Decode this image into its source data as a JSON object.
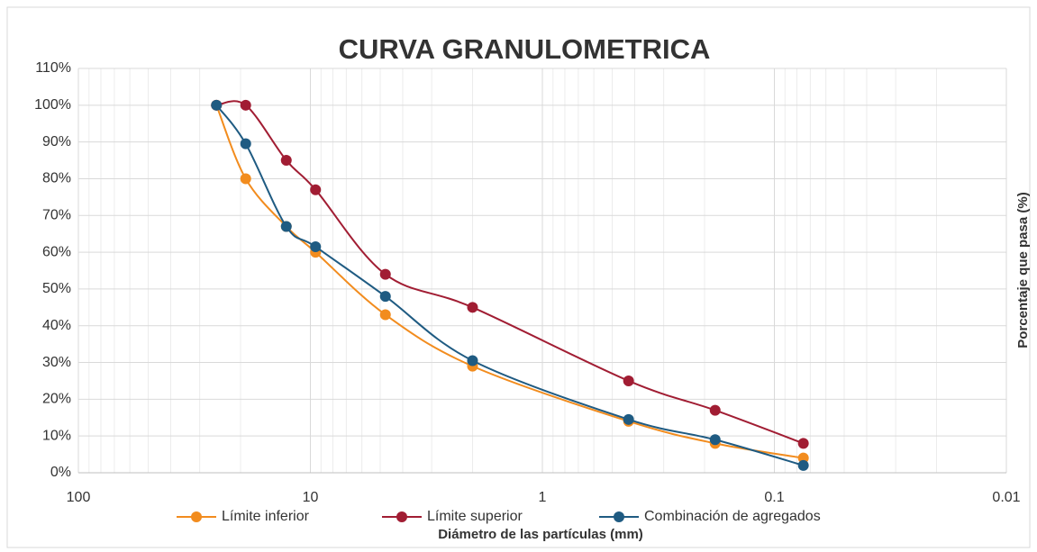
{
  "chart_data": {
    "type": "line",
    "title": "CURVA GRANULOMETRICA",
    "x_label": "Diámetro de las partículas (mm)",
    "y_label": "Porcentaje que pasa (%)",
    "x": [
      25.4,
      19.0,
      12.7,
      9.5,
      4.75,
      2.0,
      0.425,
      0.18,
      0.075
    ],
    "series": [
      {
        "name": "Límite inferior",
        "color": "#f28c1e",
        "values": [
          100,
          80,
          67,
          60,
          43,
          29,
          14,
          8,
          4
        ]
      },
      {
        "name": "Límite superior",
        "color": "#a11d33",
        "values": [
          100,
          100,
          85,
          77,
          54,
          45,
          25,
          17,
          8
        ]
      },
      {
        "name": "Combinación de agregados",
        "color": "#1f5b82",
        "values": [
          100,
          89.5,
          67,
          61.5,
          48,
          30.5,
          14.5,
          9,
          2
        ]
      }
    ],
    "x_log": true,
    "xlim": [
      100,
      0.01
    ],
    "xticks": [
      100,
      10,
      1,
      0.1,
      0.01
    ],
    "ylim": [
      0,
      110
    ],
    "yticks": [
      {
        "value": 0,
        "label": "0%"
      },
      {
        "value": 10,
        "label": "10%"
      },
      {
        "value": 20,
        "label": "20%"
      },
      {
        "value": 30,
        "label": "30%"
      },
      {
        "value": 40,
        "label": "40%"
      },
      {
        "value": 50,
        "label": "50%"
      },
      {
        "value": 60,
        "label": "60%"
      },
      {
        "value": 70,
        "label": "70%"
      },
      {
        "value": 80,
        "label": "80%"
      },
      {
        "value": 90,
        "label": "90%"
      },
      {
        "value": 100,
        "label": "100%"
      },
      {
        "value": 110,
        "label": "110%"
      }
    ],
    "grid": true,
    "legend": "bottom"
  }
}
